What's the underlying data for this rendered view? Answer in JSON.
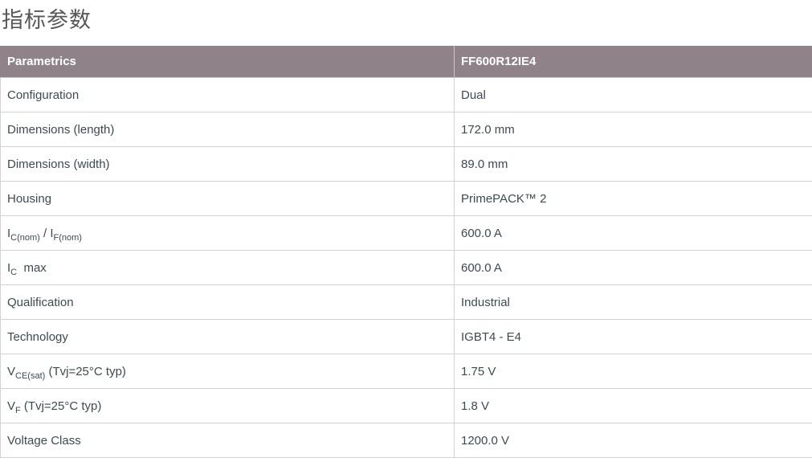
{
  "page": {
    "title": "指标参数"
  },
  "table": {
    "headers": [
      "Parametrics",
      "FF600R12IE4"
    ],
    "rows": [
      {
        "param": [
          {
            "t": "Configuration"
          }
        ],
        "value": "Dual"
      },
      {
        "param": [
          {
            "t": "Dimensions (length)"
          }
        ],
        "value": "172.0 mm"
      },
      {
        "param": [
          {
            "t": "Dimensions (width)"
          }
        ],
        "value": "89.0 mm"
      },
      {
        "param": [
          {
            "t": "Housing"
          }
        ],
        "value": "PrimePACK™ 2"
      },
      {
        "param": [
          {
            "t": "I"
          },
          {
            "t": "C(nom)",
            "sub": true
          },
          {
            "t": " / I"
          },
          {
            "t": "F(nom)",
            "sub": true
          }
        ],
        "value": "600.0 A"
      },
      {
        "param": [
          {
            "t": "I"
          },
          {
            "t": "C",
            "sub": true
          },
          {
            "t": "  max"
          }
        ],
        "value": "600.0 A"
      },
      {
        "param": [
          {
            "t": "Qualification"
          }
        ],
        "value": "Industrial"
      },
      {
        "param": [
          {
            "t": "Technology"
          }
        ],
        "value": "IGBT4 - E4"
      },
      {
        "param": [
          {
            "t": "V"
          },
          {
            "t": "CE(sat)",
            "sub": true
          },
          {
            "t": " (Tvj=25°C typ)"
          }
        ],
        "value": "1.75 V"
      },
      {
        "param": [
          {
            "t": "V"
          },
          {
            "t": "F",
            "sub": true
          },
          {
            "t": " (Tvj=25°C typ)"
          }
        ],
        "value": "1.8 V"
      },
      {
        "param": [
          {
            "t": "Voltage Class"
          }
        ],
        "value": "1200.0 V"
      }
    ]
  },
  "colors": {
    "header_bg": "#8f8288",
    "header_text": "#ffffff",
    "body_text": "#3c4a52",
    "border": "#d5d1d3",
    "title_text": "#585858"
  }
}
